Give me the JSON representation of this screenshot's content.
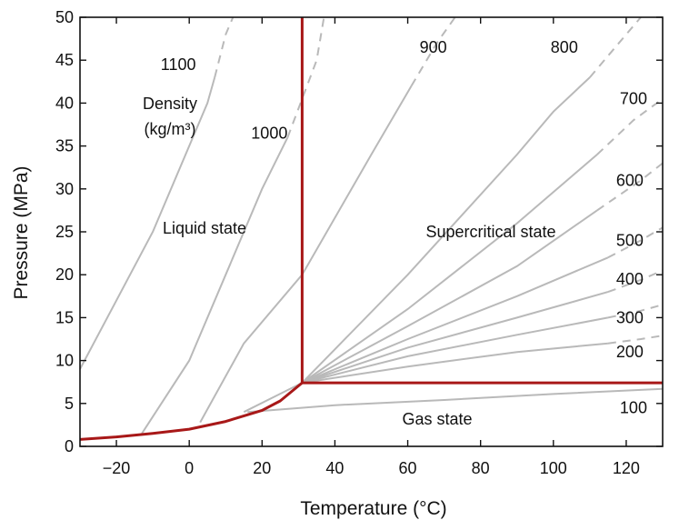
{
  "chart_data": {
    "type": "line",
    "xlabel": "Temperature (°C)",
    "ylabel": "Pressure (MPa)",
    "xlim": [
      -30,
      130
    ],
    "ylim": [
      0,
      50
    ],
    "x_ticks": [
      -20,
      0,
      20,
      40,
      60,
      80,
      100,
      120
    ],
    "x_tick_labels": [
      "−20",
      "0",
      "20",
      "40",
      "60",
      "80",
      "100",
      "120"
    ],
    "y_ticks": [
      0,
      5,
      10,
      15,
      20,
      25,
      30,
      35,
      40,
      45,
      50
    ],
    "grid": false,
    "colors": {
      "isochore": "#b9b9b9",
      "phase_boundary": "#a81818",
      "axis": "#111111"
    },
    "annotations": {
      "density_title_line1": "Density",
      "density_title_line2": "(kg/m³)",
      "liquid": "Liquid state",
      "supercritical": "Supercritical state",
      "gas": "Gas state"
    },
    "isochores": [
      {
        "name": "1100",
        "points": [
          [
            -30,
            9
          ],
          [
            -10,
            25
          ],
          [
            5,
            40
          ],
          [
            7,
            43
          ]
        ],
        "dashed_points": [
          [
            10,
            48
          ],
          [
            12,
            50
          ]
        ]
      },
      {
        "name": "1000",
        "points": [
          [
            -13,
            1.5
          ],
          [
            0,
            10
          ],
          [
            10,
            20
          ],
          [
            20,
            30
          ],
          [
            27,
            36
          ]
        ],
        "dashed_points": [
          [
            35,
            45
          ],
          [
            37,
            50
          ]
        ]
      },
      {
        "name": "900",
        "points": [
          [
            3,
            2.8
          ],
          [
            15,
            12
          ],
          [
            31,
            20
          ],
          [
            50,
            34
          ],
          [
            61,
            42
          ]
        ],
        "dashed_points": [
          [
            68,
            47
          ],
          [
            73,
            50
          ]
        ]
      },
      {
        "name": "800",
        "points": [
          [
            15,
            4
          ],
          [
            31,
            7.4
          ],
          [
            60,
            20
          ],
          [
            90,
            34
          ],
          [
            100,
            39
          ],
          [
            110,
            43
          ]
        ],
        "dashed_points": [
          [
            118,
            47
          ],
          [
            124,
            50
          ]
        ]
      },
      {
        "name": "700",
        "points": [
          [
            31,
            7.4
          ],
          [
            60,
            16
          ],
          [
            90,
            26
          ],
          [
            112,
            34
          ]
        ],
        "dashed_points": [
          [
            122,
            38
          ],
          [
            130,
            40.5
          ]
        ]
      },
      {
        "name": "600",
        "points": [
          [
            31,
            7.4
          ],
          [
            60,
            14
          ],
          [
            90,
            21
          ],
          [
            112,
            27.5
          ]
        ],
        "dashed_points": [
          [
            124,
            31
          ],
          [
            130,
            33
          ]
        ]
      },
      {
        "name": "500",
        "points": [
          [
            31,
            7.4
          ],
          [
            60,
            12.5
          ],
          [
            90,
            17.5
          ],
          [
            115,
            22
          ]
        ],
        "dashed_points": [
          [
            124,
            24
          ],
          [
            130,
            25.5
          ]
        ]
      },
      {
        "name": "400",
        "points": [
          [
            31,
            7.4
          ],
          [
            60,
            11.5
          ],
          [
            90,
            15
          ],
          [
            115,
            18
          ]
        ],
        "dashed_points": [
          [
            124,
            19.4
          ],
          [
            130,
            20.5
          ]
        ]
      },
      {
        "name": "300",
        "points": [
          [
            31,
            7.4
          ],
          [
            60,
            10.5
          ],
          [
            90,
            13
          ],
          [
            115,
            15
          ]
        ],
        "dashed_points": [
          [
            124,
            15.8
          ],
          [
            130,
            16.5
          ]
        ]
      },
      {
        "name": "200",
        "points": [
          [
            31,
            7.4
          ],
          [
            60,
            9.3
          ],
          [
            90,
            11
          ],
          [
            115,
            12
          ]
        ],
        "dashed_points": [
          [
            124,
            12.5
          ],
          [
            130,
            12.9
          ]
        ]
      },
      {
        "name": "100",
        "points": [
          [
            16,
            4
          ],
          [
            40,
            4.8
          ],
          [
            70,
            5.4
          ],
          [
            100,
            6.1
          ],
          [
            130,
            6.7
          ]
        ],
        "dashed_points": []
      }
    ],
    "isochore_labels": [
      {
        "text": "1100",
        "x": -3,
        "y": 44.5
      },
      {
        "text": "1000",
        "x": 22,
        "y": 36.5
      },
      {
        "text": "900",
        "x": 67,
        "y": 46.5
      },
      {
        "text": "800",
        "x": 103,
        "y": 46.5
      },
      {
        "text": "700",
        "x": 122,
        "y": 40.5
      },
      {
        "text": "600",
        "x": 121,
        "y": 31
      },
      {
        "text": "500",
        "x": 121,
        "y": 24
      },
      {
        "text": "400",
        "x": 121,
        "y": 19.5
      },
      {
        "text": "300",
        "x": 121,
        "y": 15
      },
      {
        "text": "200",
        "x": 121,
        "y": 11
      },
      {
        "text": "100",
        "x": 122,
        "y": 4.5
      }
    ],
    "phase_boundaries": {
      "vapor_pressure_curve": [
        [
          -30,
          0.8
        ],
        [
          -20,
          1.1
        ],
        [
          -10,
          1.5
        ],
        [
          0,
          2.0
        ],
        [
          10,
          2.9
        ],
        [
          20,
          4.2
        ],
        [
          25,
          5.3
        ],
        [
          31,
          7.4
        ]
      ],
      "critical_isotherm": [
        [
          31,
          7.4
        ],
        [
          31,
          50
        ]
      ],
      "critical_isobar": [
        [
          31,
          7.4
        ],
        [
          130,
          7.4
        ]
      ]
    },
    "critical_point": {
      "temperature": 31,
      "pressure": 7.4
    }
  }
}
